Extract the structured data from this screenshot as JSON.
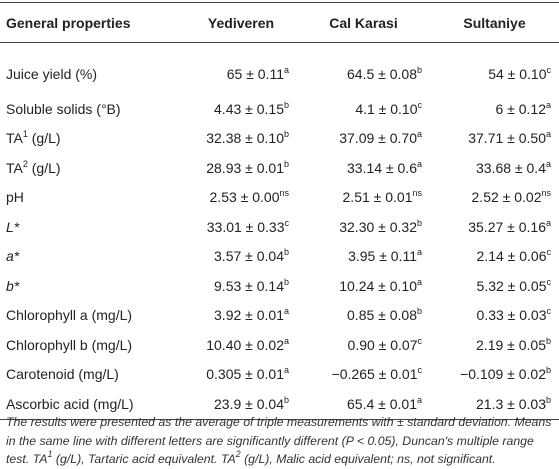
{
  "table": {
    "headers": [
      "General properties",
      "Yediveren",
      "Cal Karasi",
      "Sultaniye"
    ],
    "rows": [
      {
        "label": [
          {
            "text": "Juice yield (%)"
          }
        ],
        "cells": [
          {
            "value": "65 ± 0.11",
            "sup": "a"
          },
          {
            "value": "64.5 ± 0.08",
            "sup": "b"
          },
          {
            "value": "54 ± 0.10",
            "sup": "c"
          }
        ]
      },
      {
        "label": [
          {
            "text": "Soluble solids (°B)"
          }
        ],
        "cells": [
          {
            "value": "4.43 ± 0.15",
            "sup": "b"
          },
          {
            "value": "4.1 ± 0.10",
            "sup": "c"
          },
          {
            "value": "6 ± 0.12",
            "sup": "a"
          }
        ]
      },
      {
        "label": [
          {
            "text": "TA"
          },
          {
            "sup": "1"
          },
          {
            "text": " (g/L)"
          }
        ],
        "cells": [
          {
            "value": "32.38 ± 0.10",
            "sup": "b"
          },
          {
            "value": "37.09 ± 0.70",
            "sup": "a"
          },
          {
            "value": "37.71 ± 0.50",
            "sup": "a"
          }
        ]
      },
      {
        "label": [
          {
            "text": "TA"
          },
          {
            "sup": "2"
          },
          {
            "text": " (g/L)"
          }
        ],
        "cells": [
          {
            "value": "28.93 ± 0.01",
            "sup": "b"
          },
          {
            "value": "33.14 ± 0.6",
            "sup": "a"
          },
          {
            "value": "33.68 ± 0.4",
            "sup": "a"
          }
        ]
      },
      {
        "label": [
          {
            "text": "pH"
          }
        ],
        "cells": [
          {
            "value": "2.53 ± 0.00",
            "sup": "ns"
          },
          {
            "value": "2.51 ± 0.01",
            "sup": "ns"
          },
          {
            "value": "2.52 ± 0.02",
            "sup": "ns"
          }
        ]
      },
      {
        "label": [
          {
            "italic": "L*"
          }
        ],
        "cells": [
          {
            "value": "33.01 ± 0.33",
            "sup": "c"
          },
          {
            "value": "32.30 ± 0.32",
            "sup": "b"
          },
          {
            "value": "35.27 ± 0.16",
            "sup": "a"
          }
        ]
      },
      {
        "label": [
          {
            "italic": "a*"
          }
        ],
        "cells": [
          {
            "value": "3.57 ± 0.04",
            "sup": "b"
          },
          {
            "value": "3.95 ± 0.11",
            "sup": "a"
          },
          {
            "value": "2.14 ± 0.06",
            "sup": "c"
          }
        ]
      },
      {
        "label": [
          {
            "italic": "b*"
          }
        ],
        "cells": [
          {
            "value": "9.53 ± 0.14",
            "sup": "b"
          },
          {
            "value": "10.24 ± 0.10",
            "sup": "a"
          },
          {
            "value": "5.32 ± 0.05",
            "sup": "c"
          }
        ]
      },
      {
        "label": [
          {
            "text": "Chlorophyll a (mg/L)"
          }
        ],
        "cells": [
          {
            "value": "3.92 ± 0.01",
            "sup": "a"
          },
          {
            "value": "0.85 ± 0.08",
            "sup": "b"
          },
          {
            "value": "0.33 ± 0.03",
            "sup": "c"
          }
        ]
      },
      {
        "label": [
          {
            "text": "Chlorophyll b (mg/L)"
          }
        ],
        "cells": [
          {
            "value": "10.40 ± 0.02",
            "sup": "a"
          },
          {
            "value": "0.90 ± 0.07",
            "sup": "c"
          },
          {
            "value": "2.19 ± 0.05",
            "sup": "b"
          }
        ]
      },
      {
        "label": [
          {
            "text": "Carotenoid (mg/L)"
          }
        ],
        "cells": [
          {
            "value": "0.305 ± 0.01",
            "sup": "a"
          },
          {
            "value": "−0.265 ± 0.01",
            "sup": "c"
          },
          {
            "value": "−0.109 ± 0.02",
            "sup": "b"
          }
        ]
      },
      {
        "label": [
          {
            "text": "Ascorbic acid (mg/L)"
          }
        ],
        "cells": [
          {
            "value": "23.9 ± 0.04",
            "sup": "b"
          },
          {
            "value": "65.4 ± 0.01",
            "sup": "a"
          },
          {
            "value": "21.3 ± 0.03",
            "sup": "b"
          }
        ]
      }
    ]
  },
  "footnote": [
    {
      "text": "The results were presented as the average of triple measurements with ± standard deviation. Means in the same line with different letters are significantly different (P < 0.05), Duncan's multiple range test. TA"
    },
    {
      "sup": "1"
    },
    {
      "text": " (g/L), Tartaric acid equivalent. TA"
    },
    {
      "sup": "2"
    },
    {
      "text": " (g/L), Malic acid equivalent; ns, not significant."
    }
  ]
}
